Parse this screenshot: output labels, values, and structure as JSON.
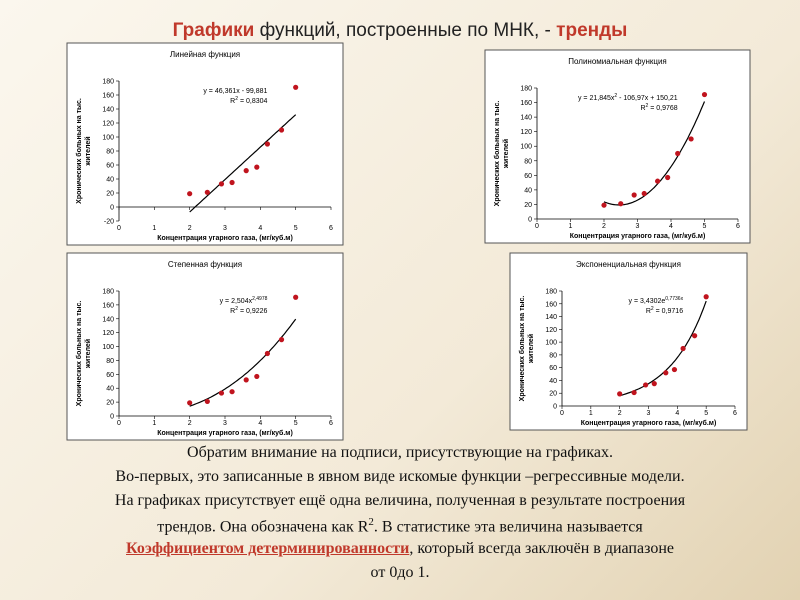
{
  "heading": [
    "Графики",
    " функций, построенные по МНК, - ",
    "тренды"
  ],
  "body": {
    "line1": "Обратим внимание на  подписи, присутствующие на графиках.",
    "line2": "Во-первых, это записанные в явном виде искомые функции –регрессивные модели.",
    "line3": "На графиках присутствует  ещё одна величина, полученная в результате построения",
    "line4": [
      "трендов. Она обозначена как R",
      "2",
      ". В статистике эта величина называется"
    ],
    "line5": [
      "Коэффициентом детерминированности",
      ", который всегда заключён в диапазоне"
    ],
    "line6": "от 0до 1."
  },
  "chart_data": [
    {
      "type": "scatter",
      "title": "Линейная функция",
      "xlabel": "Концентрация угарного газа, (мг/куб.м)",
      "ylabel": [
        "Хронических больных на тыс.",
        "жителей"
      ],
      "x": [
        2,
        2.5,
        2.9,
        3.2,
        3.6,
        3.9,
        4.2,
        4.6,
        5
      ],
      "values": [
        19,
        21,
        33,
        35,
        52,
        57,
        90,
        110,
        171
      ],
      "color": "#c0141e",
      "xlim": [
        0,
        6
      ],
      "xticks": [
        0,
        1,
        2,
        3,
        4,
        5,
        6
      ],
      "ylim": [
        -20,
        180
      ],
      "yticks": [
        -20,
        0,
        20,
        40,
        60,
        80,
        100,
        120,
        140,
        160,
        180
      ],
      "trend": {
        "type": "linear",
        "coefficients": [
          46.361,
          -99.881
        ],
        "equation": [
          "y = 46,361x - 99,881"
        ],
        "r2": [
          "R",
          "2",
          " = 0,8304"
        ]
      }
    },
    {
      "type": "scatter",
      "title": "Полиномиальная функция",
      "xlabel": "Концентрация угарного газа, (мг/куб.м)",
      "ylabel": [
        "Хронических больных на тыс.",
        "жителей"
      ],
      "x": [
        2,
        2.5,
        2.9,
        3.2,
        3.6,
        3.9,
        4.2,
        4.6,
        5
      ],
      "values": [
        19,
        21,
        33,
        35,
        52,
        57,
        90,
        110,
        171
      ],
      "color": "#c0141e",
      "xlim": [
        0,
        6
      ],
      "xticks": [
        0,
        1,
        2,
        3,
        4,
        5,
        6
      ],
      "ylim": [
        0,
        180
      ],
      "yticks": [
        0,
        20,
        40,
        60,
        80,
        100,
        120,
        140,
        160,
        180
      ],
      "trend": {
        "type": "polynomial",
        "coefficients": [
          21.845,
          -106.97,
          150.21
        ],
        "equation": [
          "y = 21,845x",
          "2",
          " - 106,97x + 150,21"
        ],
        "r2": [
          "R",
          "2",
          " = 0,9768"
        ]
      }
    },
    {
      "type": "scatter",
      "title": "Степенная функция",
      "xlabel": "Концентрация угарного газа, (мг/куб.м)",
      "ylabel": [
        "Хронических больных на тыс.",
        "жителей"
      ],
      "x": [
        2,
        2.5,
        2.9,
        3.2,
        3.6,
        3.9,
        4.2,
        4.6,
        5
      ],
      "values": [
        19,
        21,
        33,
        35,
        52,
        57,
        90,
        110,
        171
      ],
      "color": "#c0141e",
      "xlim": [
        0,
        6
      ],
      "xticks": [
        0,
        1,
        2,
        3,
        4,
        5,
        6
      ],
      "ylim": [
        0,
        180
      ],
      "yticks": [
        0,
        20,
        40,
        60,
        80,
        100,
        120,
        140,
        160,
        180
      ],
      "trend": {
        "type": "power",
        "coefficients": [
          2.504,
          2.4978
        ],
        "equation": [
          "y = 2,504x",
          "2,4978"
        ],
        "r2": [
          "R",
          "2",
          " = 0,9226"
        ]
      }
    },
    {
      "type": "scatter",
      "title": "Экспоненциальная функция",
      "xlabel": "Концентрация угарного газа, (мг/куб.м)",
      "ylabel": [
        "Хронических больных на тыс.",
        "жителей"
      ],
      "x": [
        2,
        2.5,
        2.9,
        3.2,
        3.6,
        3.9,
        4.2,
        4.6,
        5
      ],
      "values": [
        19,
        21,
        33,
        35,
        52,
        57,
        90,
        110,
        171
      ],
      "color": "#c0141e",
      "xlim": [
        0,
        6
      ],
      "xticks": [
        0,
        1,
        2,
        3,
        4,
        5,
        6
      ],
      "ylim": [
        0,
        180
      ],
      "yticks": [
        0,
        20,
        40,
        60,
        80,
        100,
        120,
        140,
        160,
        180
      ],
      "trend": {
        "type": "exponential",
        "coefficients": [
          3.4302,
          0.7736
        ],
        "equation": [
          "y = 3,4302e",
          "0,7736x"
        ],
        "r2": [
          "R",
          "2",
          " = 0,9716"
        ]
      }
    }
  ]
}
